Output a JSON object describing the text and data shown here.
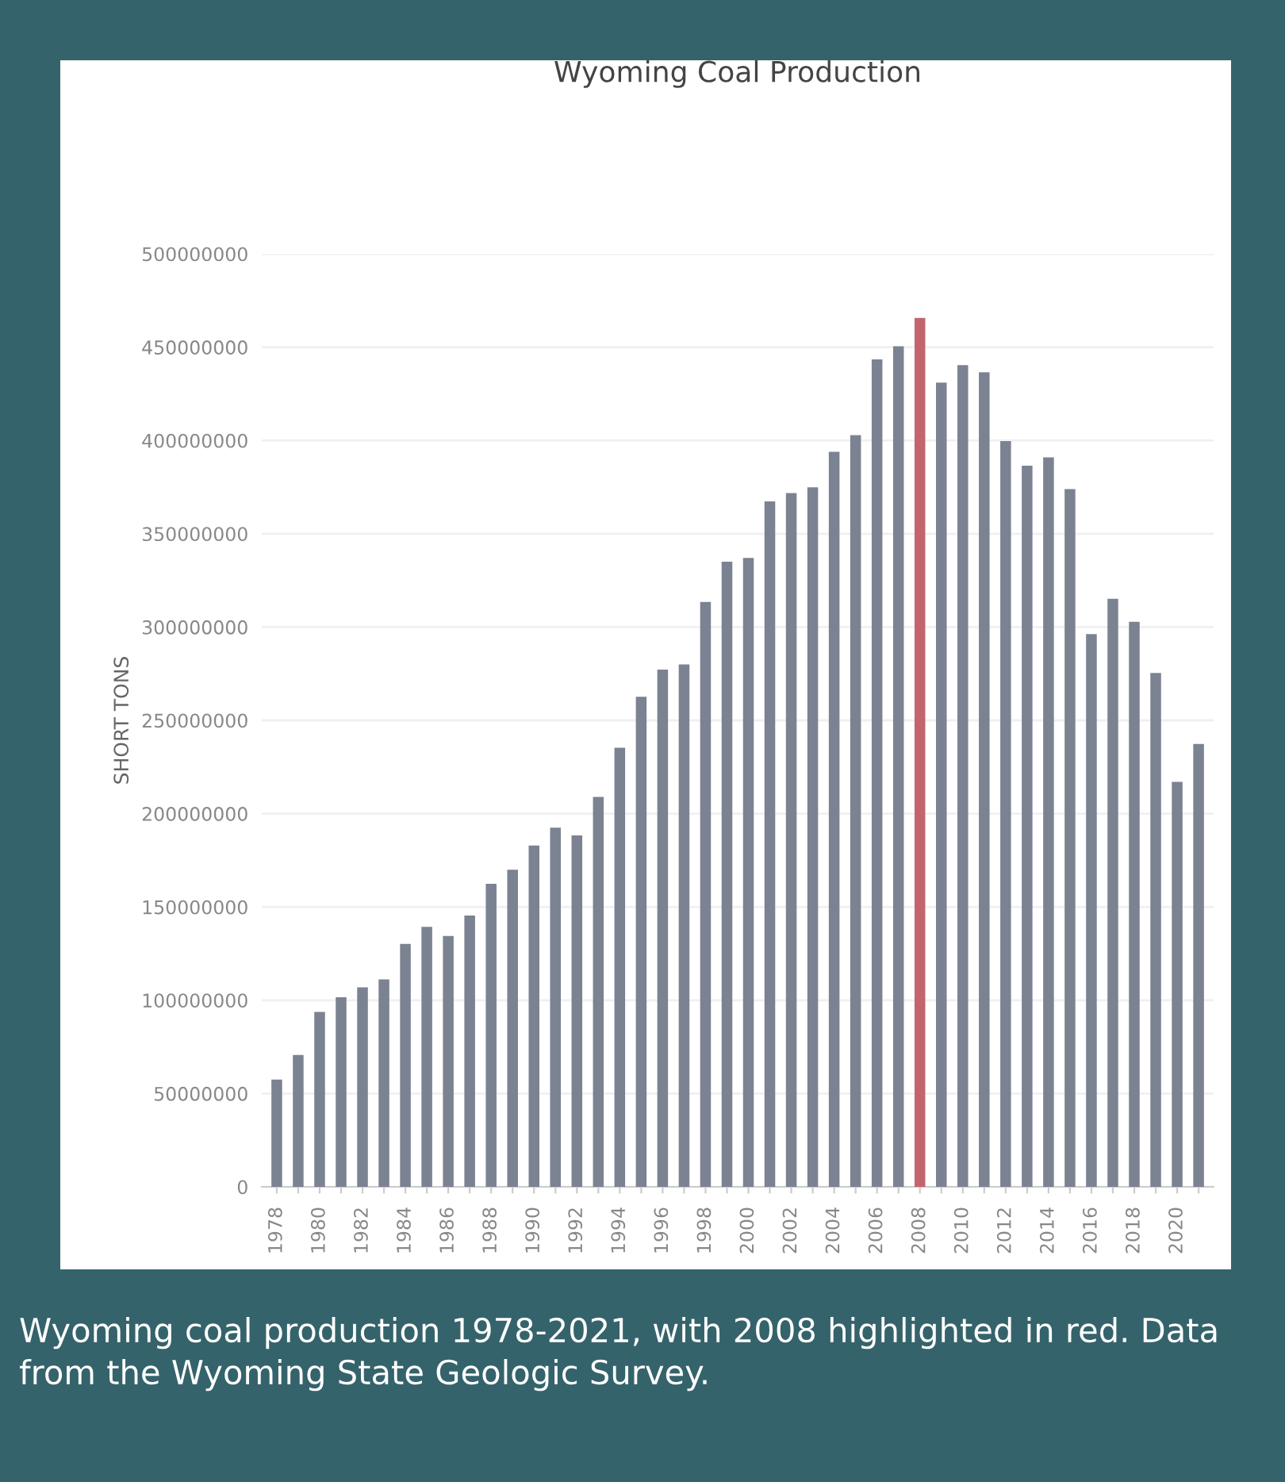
{
  "chart_data": {
    "type": "bar",
    "title": "Wyoming Coal Production",
    "ylabel": "SHORT TONS",
    "categories": [
      "1978",
      null,
      "1980",
      null,
      "1982",
      null,
      "1984",
      null,
      "1986",
      null,
      "1988",
      null,
      "1990",
      null,
      "1992",
      null,
      "1994",
      null,
      "1996",
      null,
      "1998",
      null,
      "2000",
      null,
      "2002",
      null,
      "2004",
      null,
      "2006",
      null,
      "2008",
      null,
      "2010",
      null,
      "2012",
      null,
      "2014",
      null,
      "2016",
      null,
      "2018",
      null,
      "2020",
      null
    ],
    "values": [
      57500000,
      70700000,
      93700000,
      101600000,
      106900000,
      111200000,
      130200000,
      139300000,
      134500000,
      145400000,
      162400000,
      170000000,
      182900000,
      192500000,
      188400000,
      209000000,
      235300000,
      262700000,
      277200000,
      280000000,
      313500000,
      335000000,
      337100000,
      367300000,
      371800000,
      374900000,
      393900000,
      402800000,
      443400000,
      450500000,
      465700000,
      431000000,
      440400000,
      436500000,
      399700000,
      386500000,
      390900000,
      373900000,
      296200000,
      315200000,
      302800000,
      275400000,
      217000000,
      237300000
    ],
    "colors": [
      "#7b8291",
      "#7b8291",
      "#7b8291",
      "#7b8291",
      "#7b8291",
      "#7b8291",
      "#7b8291",
      "#7b8291",
      "#7b8291",
      "#7b8291",
      "#7b8291",
      "#7b8291",
      "#7b8291",
      "#7b8291",
      "#7b8291",
      "#7b8291",
      "#7b8291",
      "#7b8291",
      "#7b8291",
      "#7b8291",
      "#7b8291",
      "#7b8291",
      "#7b8291",
      "#7b8291",
      "#7b8291",
      "#7b8291",
      "#7b8291",
      "#7b8291",
      "#7b8291",
      "#7b8291",
      "#c4646c",
      "#7b8291",
      "#7b8291",
      "#7b8291",
      "#7b8291",
      "#7b8291",
      "#7b8291",
      "#7b8291",
      "#7b8291",
      "#7b8291",
      "#7b8291",
      "#7b8291",
      "#7b8291",
      "#7b8291"
    ],
    "ylim": [
      0,
      500000000
    ],
    "yticks": [
      0,
      50000000,
      100000000,
      150000000,
      200000000,
      250000000,
      300000000,
      350000000,
      400000000,
      450000000,
      500000000
    ],
    "grid": "y",
    "annotations": [
      "Wyoming coal production 1978-2021, with 2008 highlighted in red. Data from the Wyoming State Geologic Survey."
    ]
  }
}
